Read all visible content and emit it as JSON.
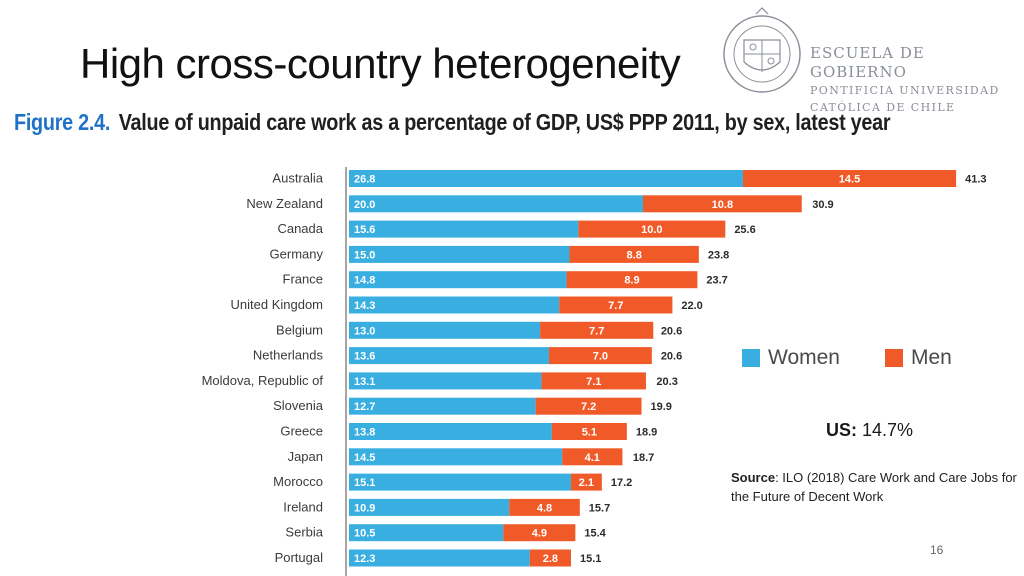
{
  "slide": {
    "title": "High cross-country heterogeneity",
    "page_number": "16"
  },
  "logo": {
    "line1": "ESCUELA DE GOBIERNO",
    "line2": "PONTIFICIA UNIVERSIDAD",
    "line3": "CATÓLICA DE CHILE"
  },
  "figure": {
    "label": "Figure 2.4.",
    "caption": "Value of unpaid care work as a percentage of GDP, US$ PPP 2011, by sex, latest year"
  },
  "notes": {
    "us_label": "US:",
    "us_value": "14.7%",
    "source_label": "Source",
    "source_text": ": ILO (2018) Care Work and Care Jobs for the Future of Decent Work"
  },
  "colors": {
    "women": "#39aee0",
    "men": "#f05a28"
  },
  "chart_data": {
    "type": "bar",
    "orientation": "horizontal",
    "stacked": true,
    "categories": [
      "Australia",
      "New Zealand",
      "Canada",
      "Germany",
      "France",
      "United Kingdom",
      "Belgium",
      "Netherlands",
      "Moldova, Republic of",
      "Slovenia",
      "Greece",
      "Japan",
      "Morocco",
      "Ireland",
      "Serbia",
      "Portugal"
    ],
    "series": [
      {
        "name": "Women",
        "values": [
          26.8,
          20.0,
          15.6,
          15.0,
          14.8,
          14.3,
          13.0,
          13.6,
          13.1,
          12.7,
          13.8,
          14.5,
          15.1,
          10.9,
          10.5,
          12.3
        ]
      },
      {
        "name": "Men",
        "values": [
          14.5,
          10.8,
          10.0,
          8.8,
          8.9,
          7.7,
          7.7,
          7.0,
          7.1,
          7.2,
          5.1,
          4.1,
          2.1,
          4.8,
          4.9,
          2.8
        ]
      }
    ],
    "totals": [
      41.3,
      30.9,
      25.6,
      23.8,
      23.7,
      22.0,
      20.6,
      20.6,
      20.3,
      19.9,
      18.9,
      18.7,
      17.2,
      15.7,
      15.4,
      15.1
    ],
    "segment_labels": {
      "Women": [
        "26.8",
        "20.0",
        "15.6",
        "15.0",
        "14.8",
        "14.3",
        "13.0",
        "13.6",
        "13.1",
        "12.7",
        "13.8",
        "14.5",
        "15.1",
        "10.9",
        "10.5",
        "12.3"
      ],
      "Men": [
        "14.5",
        "10.8",
        "10.0",
        "8.8",
        "8.9",
        "7.7",
        "7.7",
        "7.0",
        "7.1",
        "7.2",
        "5.1",
        "4.1",
        "2.1",
        "4.8",
        "4.9",
        "2.8"
      ]
    },
    "total_labels": [
      "41.3",
      "30.9",
      "25.6",
      "23.8",
      "23.7",
      "22.0",
      "20.6",
      "20.6",
      "20.3",
      "19.9",
      "18.9",
      "18.7",
      "17.2",
      "15.7",
      "15.4",
      "15.1"
    ],
    "legend_position": "right",
    "grid": false
  }
}
